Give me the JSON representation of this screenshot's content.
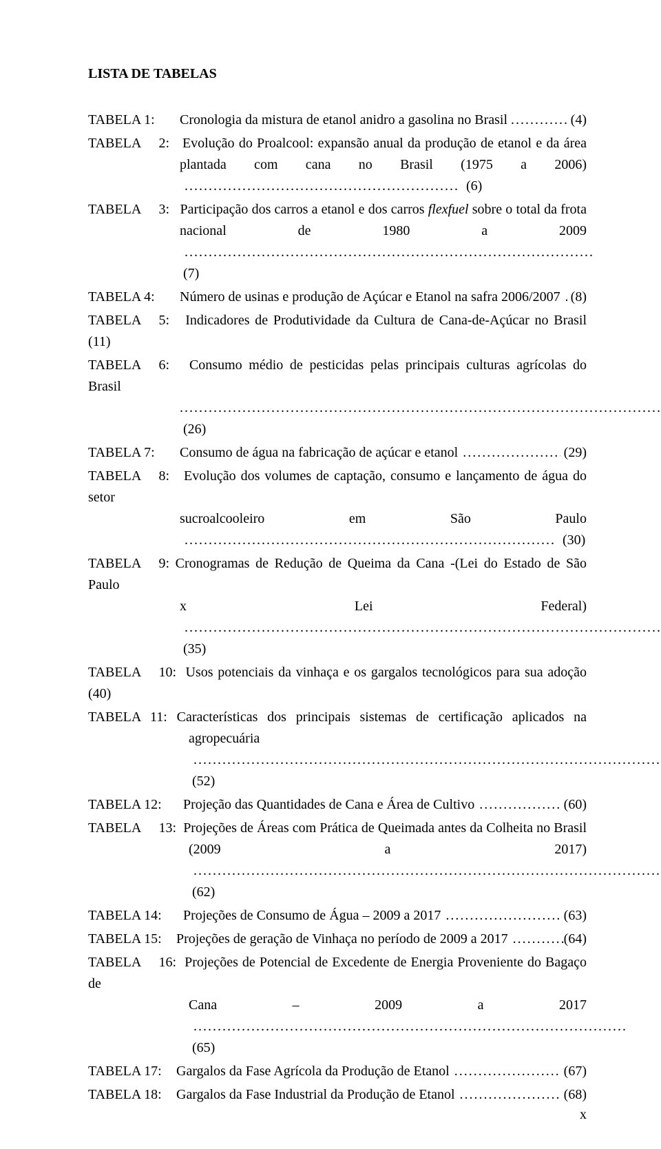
{
  "heading": "LISTA DE TABELAS",
  "tables": [
    {
      "label": "TABELA 1:",
      "line1": "Cronologia da mistura de etanol anidro a gasolina no Brasil",
      "page": "(4)"
    },
    {
      "label": "TABELA 2:",
      "line1": "Evolução do Proalcool: expansão anual da produção de etanol e da área",
      "cont_pre": "plantada com cana no Brasil (1975 a 2006)",
      "page": "(6)"
    },
    {
      "label": "TABELA 3:",
      "line1_pre": "Participação dos carros a etanol e dos carros ",
      "line1_it": "flexfuel",
      "line1_post": " sobre o total da frota",
      "cont_pre": "nacional de 1980 a 2009",
      "page": "(7)"
    },
    {
      "label": "TABELA 4:",
      "pre": "Número de usinas e produção de Açúcar e Etanol na safra 2006/2007",
      "page": "(8)"
    },
    {
      "label": "TABELA 5:",
      "text": "Indicadores de Produtividade da Cultura de Cana-de-Açúcar no Brasil (11)"
    },
    {
      "label": "TABELA 6:",
      "line1": "Consumo médio de pesticidas pelas principais culturas agrícolas do Brasil",
      "cont_pre": "",
      "page": "(26)"
    },
    {
      "label": "TABELA 7:",
      "pre": "Consumo de água na fabricação de açúcar e etanol",
      "page": "(29)"
    },
    {
      "label": "TABELA 8:",
      "line1": "Evolução dos volumes de captação, consumo e lançamento de água do setor",
      "cont_pre": "sucroalcooleiro em São Paulo",
      "page": "(30)"
    },
    {
      "label": "TABELA 9:",
      "line1": "Cronogramas de Redução de Queima da Cana -(Lei do Estado de São Paulo",
      "cont_pre": "x Lei Federal)",
      "page": "(35)"
    },
    {
      "label": "TABELA 10:",
      "text": "Usos potenciais da vinhaça e os gargalos tecnológicos para sua adoção (40)"
    },
    {
      "label": "TABELA 11:",
      "line1": "Características dos principais sistemas de certificação aplicados na",
      "cont_pre": "agropecuária",
      "page": "(52)"
    },
    {
      "label": "TABELA 12:",
      "pre": "Projeção das Quantidades de Cana e Área de Cultivo",
      "page": "(60)"
    },
    {
      "label": "TABELA 13:",
      "line1": "Projeções de Áreas com Prática de Queimada antes da Colheita no Brasil",
      "cont_pre": "(2009 a 2017)",
      "page": "(62)"
    },
    {
      "label": "TABELA 14:",
      "pre": "Projeções de Consumo de Água – 2009 a 2017",
      "page": "(63)"
    },
    {
      "label": "TABELA 15:",
      "pre": "Projeções de geração de Vinhaça no período de 2009 a 2017",
      "page": "(64)"
    },
    {
      "label": "TABELA 16:",
      "line1": "Projeções de Potencial de Excedente de Energia Proveniente do Bagaço de",
      "cont_pre": "Cana – 2009 a 2017",
      "page": "(65)"
    },
    {
      "label": "TABELA 17:",
      "pre": "Gargalos da Fase Agrícola da Produção de Etanol",
      "page": "(67)"
    },
    {
      "label": "TABELA 18:",
      "pre": "Gargalos da Fase Industrial da Produção de Etanol",
      "page": "(68)"
    }
  ],
  "dots_short": "..............",
  "dots_med": ".....................................",
  "dots_long": "...........................................................",
  "roman": "x",
  "colors": {
    "background": "#ffffff",
    "text": "#000000"
  },
  "fontsize_pt": 15
}
